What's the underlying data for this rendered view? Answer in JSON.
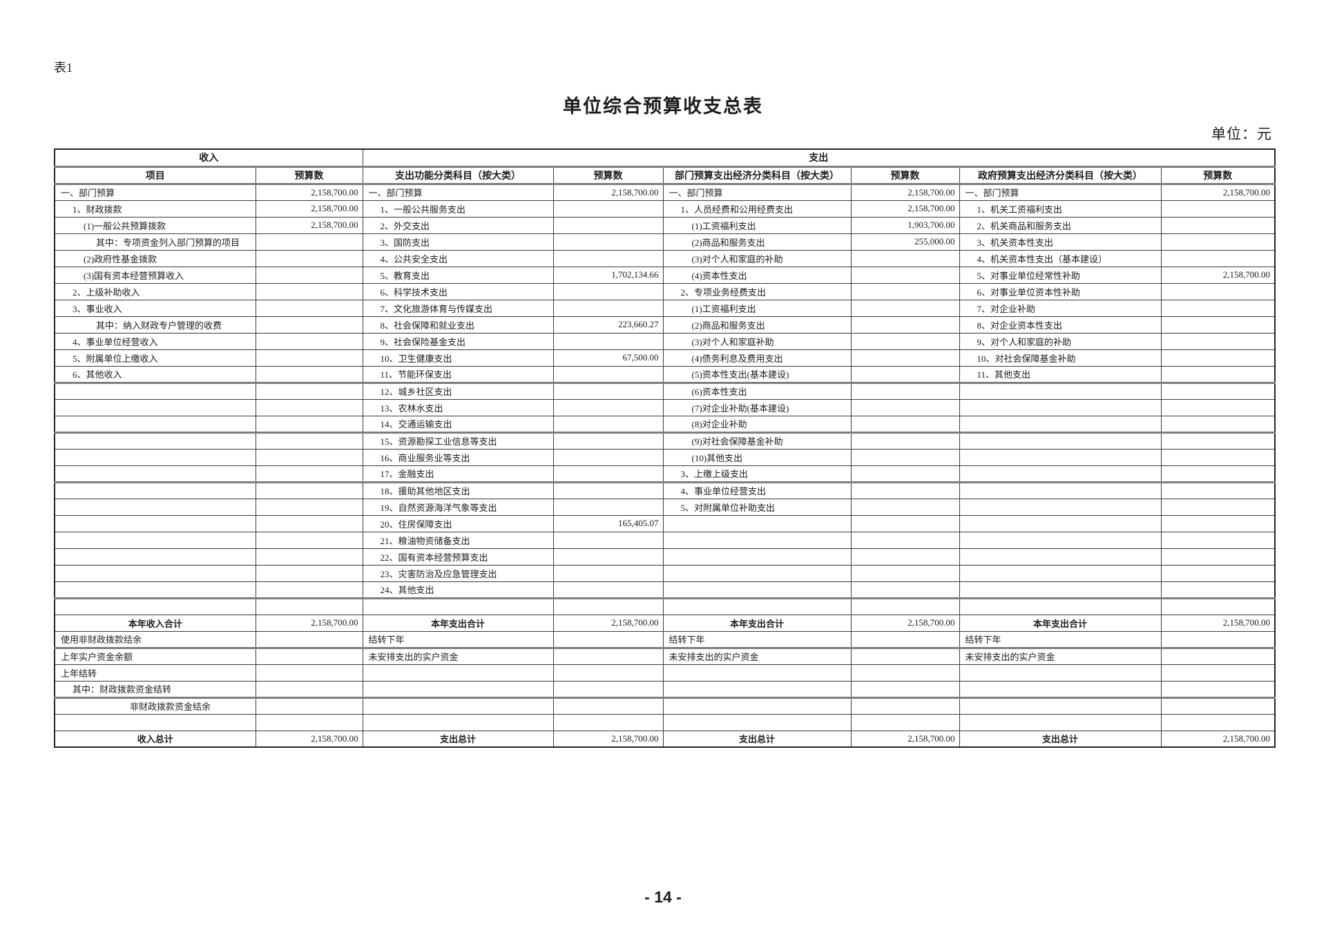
{
  "page": {
    "table_tag": "表1",
    "title": "单位综合预算收支总表",
    "unit_label": "单位：元",
    "page_number": "- 14 -"
  },
  "table": {
    "group_headers": {
      "income": "收入",
      "expenditure": "支出"
    },
    "column_headers": [
      "项目",
      "预算数",
      "支出功能分类科目（按大类）",
      "预算数",
      "部门预算支出经济分类科目（按大类）",
      "预算数",
      "政府预算支出经济分类科目（按大类）",
      "预算数"
    ],
    "thick_after": [
      12,
      15,
      18,
      25,
      28,
      31
    ],
    "rows": [
      [
        [
          "一、部门预算",
          0,
          "t"
        ],
        [
          "2,158,700.00",
          0,
          "n"
        ],
        [
          "一、部门预算",
          0,
          "t"
        ],
        [
          "2,158,700.00",
          0,
          "n"
        ],
        [
          "一、部门预算",
          0,
          "t"
        ],
        [
          "2,158,700.00",
          0,
          "n"
        ],
        [
          "一、部门预算",
          0,
          "t"
        ],
        [
          "2,158,700.00",
          0,
          "n"
        ]
      ],
      [
        [
          "1、财政拨款",
          1,
          "t"
        ],
        [
          "2,158,700.00",
          0,
          "n"
        ],
        [
          "1、一般公共服务支出",
          1,
          "t"
        ],
        null,
        [
          "1、人员经费和公用经费支出",
          1,
          "t"
        ],
        [
          "2,158,700.00",
          0,
          "n"
        ],
        [
          "1、机关工资福利支出",
          1,
          "t"
        ],
        null
      ],
      [
        [
          "(1)一般公共预算拨款",
          2,
          "t"
        ],
        [
          "2,158,700.00",
          0,
          "n"
        ],
        [
          "2、外交支出",
          1,
          "t"
        ],
        null,
        [
          "(1)工资福利支出",
          2,
          "t"
        ],
        [
          "1,903,700.00",
          0,
          "n"
        ],
        [
          "2、机关商品和服务支出",
          1,
          "t"
        ],
        null
      ],
      [
        [
          "其中：专项资金列入部门预算的项目",
          3,
          "t"
        ],
        null,
        [
          "3、国防支出",
          1,
          "t"
        ],
        null,
        [
          "(2)商品和服务支出",
          2,
          "t"
        ],
        [
          "255,000.00",
          0,
          "n"
        ],
        [
          "3、机关资本性支出",
          1,
          "t"
        ],
        null
      ],
      [
        [
          "(2)政府性基金拨款",
          2,
          "t"
        ],
        null,
        [
          "4、公共安全支出",
          1,
          "t"
        ],
        null,
        [
          "(3)对个人和家庭的补助",
          2,
          "t"
        ],
        null,
        [
          "4、机关资本性支出（基本建设）",
          1,
          "t"
        ],
        null
      ],
      [
        [
          "(3)国有资本经营预算收入",
          2,
          "t"
        ],
        null,
        [
          "5、教育支出",
          1,
          "t"
        ],
        [
          "1,702,134.66",
          0,
          "n"
        ],
        [
          "(4)资本性支出",
          2,
          "t"
        ],
        null,
        [
          "5、对事业单位经常性补助",
          1,
          "t"
        ],
        [
          "2,158,700.00",
          0,
          "n"
        ]
      ],
      [
        [
          "2、上级补助收入",
          1,
          "t"
        ],
        null,
        [
          "6、科学技术支出",
          1,
          "t"
        ],
        null,
        [
          "2、专项业务经费支出",
          1,
          "t"
        ],
        null,
        [
          "6、对事业单位资本性补助",
          1,
          "t"
        ],
        null
      ],
      [
        [
          "3、事业收入",
          1,
          "t"
        ],
        null,
        [
          "7、文化旅游体育与传媒支出",
          1,
          "t"
        ],
        null,
        [
          "(1)工资福利支出",
          2,
          "t"
        ],
        null,
        [
          "7、对企业补助",
          1,
          "t"
        ],
        null
      ],
      [
        [
          "其中：纳入财政专户管理的收费",
          3,
          "t"
        ],
        null,
        [
          "8、社会保障和就业支出",
          1,
          "t"
        ],
        [
          "223,660.27",
          0,
          "n"
        ],
        [
          "(2)商品和服务支出",
          2,
          "t"
        ],
        null,
        [
          "8、对企业资本性支出",
          1,
          "t"
        ],
        null
      ],
      [
        [
          "4、事业单位经营收入",
          1,
          "t"
        ],
        null,
        [
          "9、社会保险基金支出",
          1,
          "t"
        ],
        null,
        [
          "(3)对个人和家庭补助",
          2,
          "t"
        ],
        null,
        [
          "9、对个人和家庭的补助",
          1,
          "t"
        ],
        null
      ],
      [
        [
          "5、附属单位上缴收入",
          1,
          "t"
        ],
        null,
        [
          "10、卫生健康支出",
          1,
          "t"
        ],
        [
          "67,500.00",
          0,
          "n"
        ],
        [
          "(4)债务利息及费用支出",
          2,
          "t"
        ],
        null,
        [
          "10、对社会保障基金补助",
          1,
          "t"
        ],
        null
      ],
      [
        [
          "6、其他收入",
          1,
          "t"
        ],
        null,
        [
          "11、节能环保支出",
          1,
          "t"
        ],
        null,
        [
          "(5)资本性支出(基本建设)",
          2,
          "t"
        ],
        null,
        [
          "11、其他支出",
          1,
          "t"
        ],
        null
      ],
      [
        null,
        null,
        [
          "12、城乡社区支出",
          1,
          "t"
        ],
        null,
        [
          "(6)资本性支出",
          2,
          "t"
        ],
        null,
        null,
        null
      ],
      [
        null,
        null,
        [
          "13、农林水支出",
          1,
          "t"
        ],
        null,
        [
          "(7)对企业补助(基本建设)",
          2,
          "t"
        ],
        null,
        null,
        null
      ],
      [
        null,
        null,
        [
          "14、交通运输支出",
          1,
          "t"
        ],
        null,
        [
          "(8)对企业补助",
          2,
          "t"
        ],
        null,
        null,
        null
      ],
      [
        null,
        null,
        [
          "15、资源勘探工业信息等支出",
          1,
          "t"
        ],
        null,
        [
          "(9)对社会保障基金补助",
          2,
          "t"
        ],
        null,
        null,
        null
      ],
      [
        null,
        null,
        [
          "16、商业服务业等支出",
          1,
          "t"
        ],
        null,
        [
          "(10)其他支出",
          2,
          "t"
        ],
        null,
        null,
        null
      ],
      [
        null,
        null,
        [
          "17、金融支出",
          1,
          "t"
        ],
        null,
        [
          "3、上缴上级支出",
          1,
          "t"
        ],
        null,
        null,
        null
      ],
      [
        null,
        null,
        [
          "18、援助其他地区支出",
          1,
          "t"
        ],
        null,
        [
          "4、事业单位经营支出",
          1,
          "t"
        ],
        null,
        null,
        null
      ],
      [
        null,
        null,
        [
          "19、自然资源海洋气象等支出",
          1,
          "t"
        ],
        null,
        [
          "5、对附属单位补助支出",
          1,
          "t"
        ],
        null,
        null,
        null
      ],
      [
        null,
        null,
        [
          "20、住房保障支出",
          1,
          "t"
        ],
        [
          "165,405.07",
          0,
          "n"
        ],
        null,
        null,
        null,
        null
      ],
      [
        null,
        null,
        [
          "21、粮油物资储备支出",
          1,
          "t"
        ],
        null,
        null,
        null,
        null,
        null
      ],
      [
        null,
        null,
        [
          "22、国有资本经营预算支出",
          1,
          "t"
        ],
        null,
        null,
        null,
        null,
        null
      ],
      [
        null,
        null,
        [
          "23、灾害防治及应急管理支出",
          1,
          "t"
        ],
        null,
        null,
        null,
        null,
        null
      ],
      [
        null,
        null,
        [
          "24、其他支出",
          1,
          "t"
        ],
        null,
        null,
        null,
        null,
        null
      ],
      [
        null,
        null,
        null,
        null,
        null,
        null,
        null,
        null
      ],
      [
        [
          "本年收入合计",
          0,
          "c"
        ],
        [
          "2,158,700.00",
          0,
          "n"
        ],
        [
          "本年支出合计",
          0,
          "c"
        ],
        [
          "2,158,700.00",
          0,
          "n"
        ],
        [
          "本年支出合计",
          0,
          "c"
        ],
        [
          "2,158,700.00",
          0,
          "n"
        ],
        [
          "本年支出合计",
          0,
          "c"
        ],
        [
          "2,158,700.00",
          0,
          "n"
        ]
      ],
      [
        [
          "使用非财政拨款结余",
          0,
          "t"
        ],
        null,
        [
          "结转下年",
          0,
          "t"
        ],
        null,
        [
          "结转下年",
          0,
          "t"
        ],
        null,
        [
          "结转下年",
          0,
          "t"
        ],
        null
      ],
      [
        [
          "上年实户资金余额",
          0,
          "t"
        ],
        null,
        [
          "未安排支出的实户资金",
          0,
          "t"
        ],
        null,
        [
          "未安排支出的实户资金",
          0,
          "t"
        ],
        null,
        [
          "未安排支出的实户资金",
          0,
          "t"
        ],
        null
      ],
      [
        [
          "上年结转",
          0,
          "t"
        ],
        null,
        null,
        null,
        null,
        null,
        null,
        null
      ],
      [
        [
          "其中：财政拨款资金结转",
          1,
          "t"
        ],
        null,
        null,
        null,
        null,
        null,
        null,
        null
      ],
      [
        [
          "非财政拨款资金结余",
          4,
          "t"
        ],
        null,
        null,
        null,
        null,
        null,
        null,
        null
      ],
      [
        null,
        null,
        null,
        null,
        null,
        null,
        null,
        null
      ],
      [
        [
          "收入总计",
          0,
          "c"
        ],
        [
          "2,158,700.00",
          0,
          "n"
        ],
        [
          "支出总计",
          0,
          "c"
        ],
        [
          "2,158,700.00",
          0,
          "n"
        ],
        [
          "支出总计",
          0,
          "c"
        ],
        [
          "2,158,700.00",
          0,
          "n"
        ],
        [
          "支出总计",
          0,
          "c"
        ],
        [
          "2,158,700.00",
          0,
          "n"
        ]
      ]
    ]
  }
}
